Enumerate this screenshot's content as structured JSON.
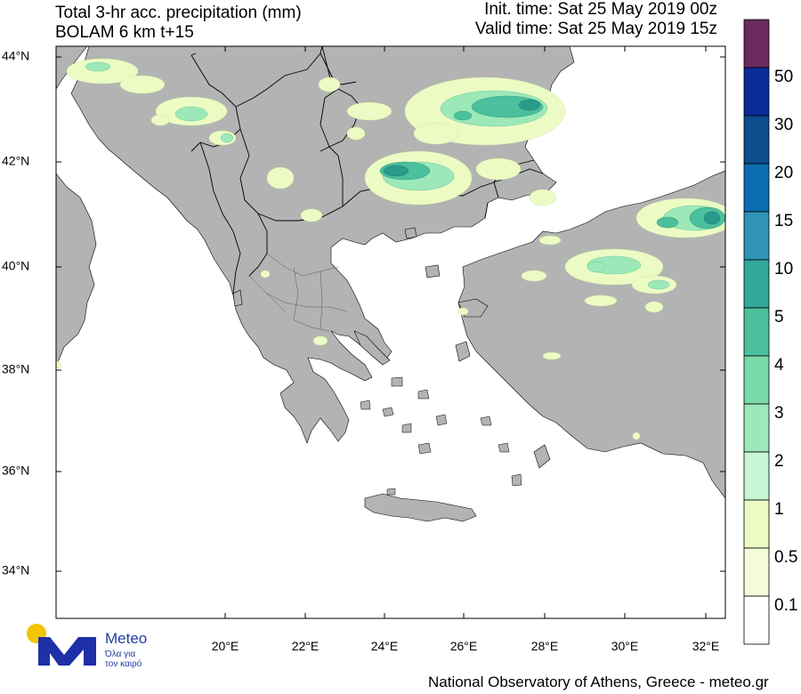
{
  "header": {
    "title_line1": "Total 3-hr acc. precipitation (mm)",
    "title_line2": "BOLAM 6 km t+15",
    "init_time": "Init. time: Sat 25 May 2019 00z",
    "valid_time": "Valid time: Sat 25 May 2019 15z"
  },
  "axes": {
    "lat_labels": [
      "44°N",
      "42°N",
      "40°N",
      "38°N",
      "36°N",
      "34°N"
    ],
    "lon_labels": [
      "20°E",
      "22°E",
      "24°E",
      "26°E",
      "28°E",
      "30°E",
      "32°E"
    ]
  },
  "legend": {
    "unit": "mm",
    "levels": [
      "50",
      "30",
      "20",
      "15",
      "10",
      "5",
      "4",
      "3",
      "2",
      "1",
      "0.5",
      "0.1"
    ],
    "colors": [
      "#6a2a5e",
      "#0a2a9a",
      "#0f4d8e",
      "#0a6eb0",
      "#2f94b8",
      "#33a89a",
      "#4cbf9c",
      "#7ad9a8",
      "#9ce8b8",
      "#c8f5d4",
      "#ecfbc4",
      "#f4fbd8",
      "#ffffff"
    ]
  },
  "map": {
    "land_color": "#b3b3b3",
    "sea_color": "#ffffff",
    "border_color": "#000000",
    "precip_colors": {
      "light": "#ecfbc4",
      "moderate": "#9ce8b8",
      "heavy": "#4cbf9c",
      "very_heavy": "#2a9a8a"
    }
  },
  "branding": {
    "logo_name": "Meteo",
    "logo_tagline_line1": "Όλα για",
    "logo_tagline_line2": "τον καιρό",
    "footer": "National Observatory of Athens, Greece - meteo.gr"
  }
}
